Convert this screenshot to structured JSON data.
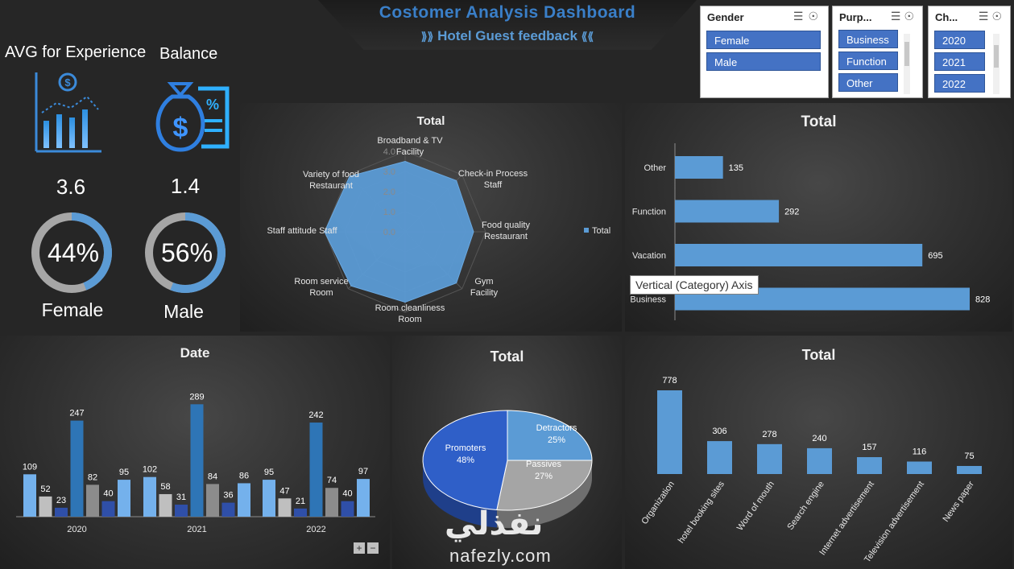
{
  "header": {
    "title": "Costomer Analysis Dashboard",
    "subtitle": "Hotel Guest feedback"
  },
  "slicers": {
    "gender": {
      "title": "Gender",
      "items": [
        "Female",
        "Male"
      ]
    },
    "purpose": {
      "title": "Purp...",
      "items": [
        "Business",
        "Function",
        "Other"
      ]
    },
    "channel": {
      "title": "Ch...",
      "items": [
        "2020",
        "2021",
        "2022"
      ]
    }
  },
  "kpis": {
    "experience": {
      "label": "AVG for Experience",
      "value": "3.6"
    },
    "balance": {
      "label": "Balance",
      "value": "1.4"
    },
    "female": {
      "percent": 44,
      "percent_label": "44%",
      "label": "Female"
    },
    "male": {
      "percent": 56,
      "percent_label": "56%",
      "label": "Male"
    }
  },
  "tooltip": "Vertical (Category) Axis",
  "watermark": {
    "arabic": "نفذلي",
    "latin": "nafezly.com"
  },
  "colors": {
    "accent": "#5b9bd5",
    "dark_blue": "#2e75b6",
    "navy": "#2f4fa8",
    "gray": "#8c8c8c",
    "light_gray": "#bfbfbf",
    "light_blue": "#74b1ec"
  },
  "chart_data": [
    {
      "type": "radar",
      "title": "Total",
      "categories": [
        "Broadband & TV Facility",
        "Check-in Process Staff",
        "Food quality Restaurant",
        "Gym Facility",
        "Room cleanliness Room",
        "Room service Room",
        "Staff attitude Staff",
        "Variety of food Restaurant"
      ],
      "series": [
        {
          "name": "Total",
          "values": [
            3.5,
            3.6,
            3.4,
            3.6,
            3.5,
            3.8,
            4.0,
            3.9
          ]
        }
      ],
      "ticks": [
        "0.0",
        "1.0",
        "2.0",
        "3.0",
        "4.0"
      ],
      "rlim": [
        0,
        4
      ],
      "legend": "right"
    },
    {
      "type": "bar",
      "orientation": "horizontal",
      "title": "Total",
      "categories": [
        "Other",
        "Function",
        "Vacation",
        "Business"
      ],
      "values": [
        135,
        292,
        695,
        828
      ],
      "xlim": [
        0,
        828
      ]
    },
    {
      "type": "bar",
      "title": "Date",
      "groups": [
        "2020",
        "2021",
        "2022"
      ],
      "values": [
        [
          109,
          52,
          23,
          247,
          82,
          40,
          95
        ],
        [
          102,
          58,
          31,
          289,
          84,
          36,
          86
        ],
        [
          95,
          47,
          21,
          242,
          74,
          40,
          97
        ]
      ],
      "series_colors": [
        "#74b1ec",
        "#bfbfbf",
        "#2f4fa8",
        "#2e75b6",
        "#8c8c8c",
        "#2f4fa8",
        "#74b1ec"
      ],
      "ylim": [
        0,
        300
      ]
    },
    {
      "type": "pie",
      "title": "Total",
      "categories": [
        "Detractors",
        "Passives",
        "Promoters"
      ],
      "values": [
        25,
        27,
        48
      ],
      "labels": [
        "25%",
        "27%",
        "48%"
      ]
    },
    {
      "type": "bar",
      "title": "Total",
      "categories": [
        "Organization",
        "hotel booking sites",
        "Word of mouth",
        "Search engine",
        "Internet advertisement",
        "Television advertisement",
        "News paper"
      ],
      "values": [
        778,
        306,
        278,
        240,
        157,
        116,
        75
      ],
      "ylim": [
        0,
        778
      ]
    }
  ]
}
